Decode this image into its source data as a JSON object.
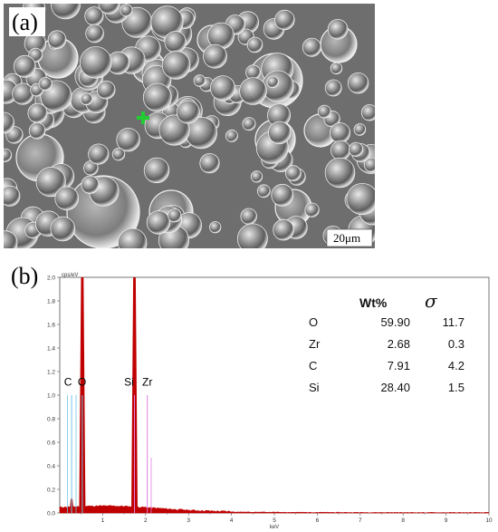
{
  "panel_a": {
    "label": "(a)",
    "scale_bar_label": "20μm"
  },
  "panel_b": {
    "label": "(b)",
    "y_unit": "cps/eV",
    "x_unit": "keV",
    "y_ticks": [
      "0.0",
      "0.2",
      "0.4",
      "0.6",
      "0.8",
      "1.0",
      "1.2",
      "1.4",
      "1.6",
      "1.8",
      "2.0"
    ],
    "x_ticks": [
      "1",
      "2",
      "3",
      "4",
      "5",
      "6",
      "7",
      "8",
      "9",
      "10"
    ],
    "peak_labels": [
      "C",
      "O",
      "Si",
      "Zr"
    ],
    "table": {
      "header_wt": "Wt%",
      "header_sigma": "σ",
      "rows": [
        {
          "element": "O",
          "wt": "59.90",
          "sigma": "11.7"
        },
        {
          "element": "Zr",
          "wt": "2.68",
          "sigma": "0.3"
        },
        {
          "element": "C",
          "wt": "7.91",
          "sigma": "4.2"
        },
        {
          "element": "Si",
          "wt": "28.40",
          "sigma": "1.5"
        }
      ]
    },
    "colors": {
      "spectrum": "#c00000",
      "c_marker": "#6fc8e8",
      "o_marker": "#6fc8e8",
      "si_marker": "#e080e0",
      "zr_marker": "#e080e0"
    }
  },
  "chart_data": {
    "type": "area",
    "xlabel": "keV",
    "ylabel": "cps/eV",
    "xlim": [
      0,
      10
    ],
    "ylim": [
      0,
      2.0
    ],
    "peaks": [
      {
        "label": "C",
        "x": 0.277,
        "y": 0.12
      },
      {
        "label": "O",
        "x": 0.525,
        "y": 2.0
      },
      {
        "label": "Si",
        "x": 1.74,
        "y": 2.0
      },
      {
        "label": "Zr",
        "x": 2.04,
        "y": 0.04
      }
    ]
  }
}
